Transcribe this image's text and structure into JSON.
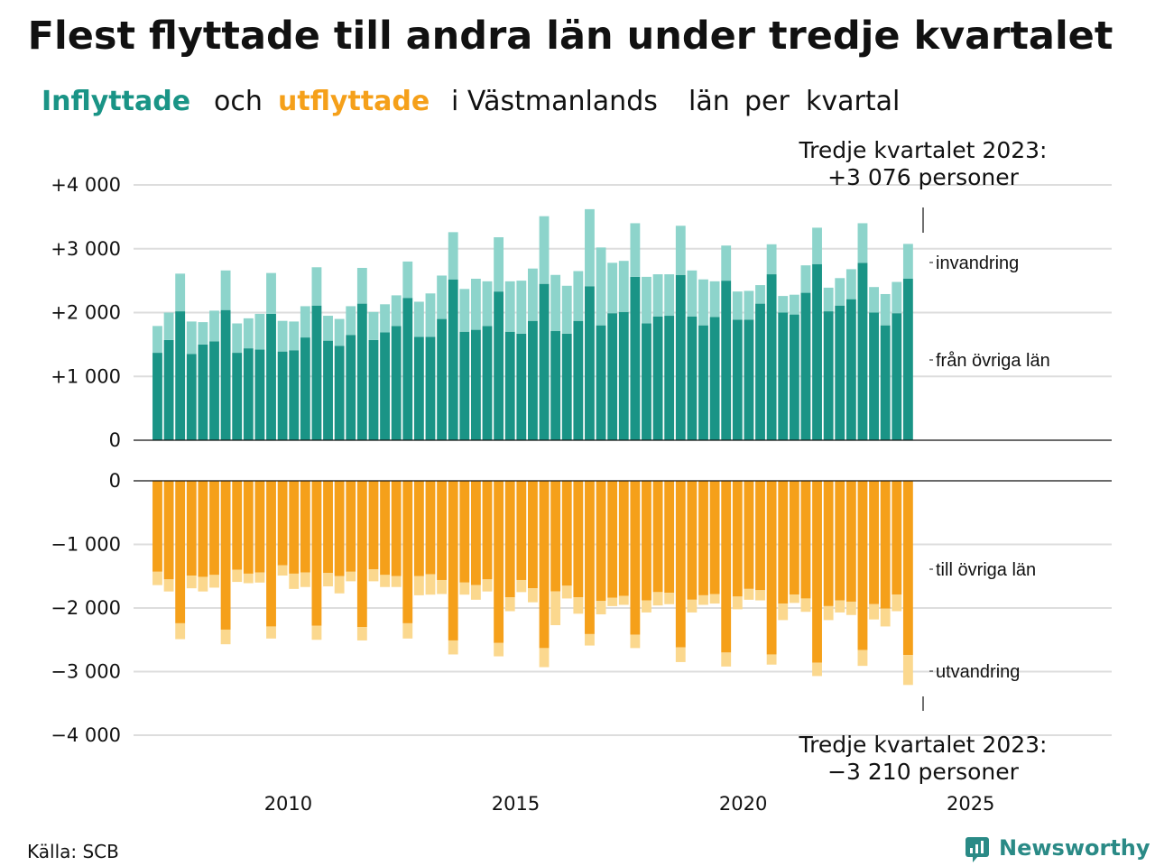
{
  "title": "Flest flyttade till andra län under tredje kvartalet",
  "subtitle": {
    "part1": "Inflyttade",
    "part2": "och",
    "part3": "utflyttade",
    "part4": "i Västmanlands",
    "part5": "län",
    "part6": "per",
    "part7": "kvartal"
  },
  "colors": {
    "in_main": "#1a9486",
    "in_light": "#8dd4cb",
    "out_main": "#f5a01a",
    "out_light": "#fbd88e",
    "grid": "#dddddd",
    "brand": "#2a8a86"
  },
  "annotations": {
    "top_line1": "Tredje kvartalet 2023:",
    "top_line2": "+3 076 personer",
    "bottom_line1": "Tredje kvartalet 2023:",
    "bottom_line2": "−3 210 personer"
  },
  "series_labels": {
    "in_light": "invandring",
    "in_main": "från övriga län",
    "out_main": "till övriga län",
    "out_light": "utvandring"
  },
  "source": "Källa: SCB",
  "brand": "Newsworthy",
  "chart_data": {
    "type": "bar",
    "stacked": true,
    "x_start": "2007 Q1",
    "x_end": "2023 Q3",
    "xlim": [
      2006.6,
      2028.1
    ],
    "x_ticks": [
      "2010",
      "2015",
      "2020",
      "2025"
    ],
    "top_panel": {
      "ylim": [
        0,
        4000
      ],
      "y_ticks": [
        "0",
        "+1 000",
        "+2 000",
        "+3 000",
        "+4 000"
      ],
      "series": [
        {
          "name": "från övriga län",
          "values": [
            1370,
            1570,
            2020,
            1350,
            1500,
            1550,
            2040,
            1370,
            1440,
            1420,
            1980,
            1390,
            1410,
            1610,
            2110,
            1560,
            1480,
            1650,
            2140,
            1570,
            1690,
            1790,
            2230,
            1620,
            1620,
            1900,
            2520,
            1700,
            1730,
            1790,
            2330,
            1700,
            1670,
            1870,
            2450,
            1710,
            1670,
            1870,
            2410,
            1800,
            1990,
            2010,
            2560,
            1830,
            1940,
            1950,
            2590,
            1940,
            1800,
            1930,
            2500,
            1890,
            1890,
            2140,
            2600,
            2000,
            1970,
            2310,
            2760,
            2020,
            2110,
            2210,
            2780,
            2000,
            1800,
            1990,
            2530
          ]
        },
        {
          "name": "invandring",
          "values": [
            420,
            430,
            590,
            510,
            350,
            480,
            620,
            460,
            470,
            560,
            640,
            480,
            450,
            490,
            600,
            390,
            420,
            450,
            560,
            440,
            440,
            480,
            570,
            550,
            680,
            680,
            740,
            670,
            800,
            700,
            850,
            790,
            830,
            820,
            1060,
            880,
            750,
            780,
            1210,
            1220,
            790,
            800,
            840,
            730,
            660,
            650,
            770,
            720,
            720,
            560,
            550,
            440,
            450,
            290,
            470,
            260,
            310,
            430,
            570,
            370,
            430,
            470,
            620,
            400,
            490,
            490,
            546
          ]
        }
      ]
    },
    "bottom_panel": {
      "ylim": [
        -4000,
        0
      ],
      "y_ticks": [
        "0",
        "−1 000",
        "−2 000",
        "−3 000",
        "−4 000"
      ],
      "series": [
        {
          "name": "till övriga län",
          "values": [
            -1430,
            -1550,
            -2240,
            -1490,
            -1510,
            -1480,
            -2340,
            -1400,
            -1460,
            -1440,
            -2290,
            -1330,
            -1460,
            -1440,
            -2280,
            -1450,
            -1500,
            -1430,
            -2300,
            -1390,
            -1480,
            -1500,
            -2240,
            -1500,
            -1470,
            -1560,
            -2510,
            -1600,
            -1640,
            -1550,
            -2550,
            -1830,
            -1560,
            -1690,
            -2630,
            -1740,
            -1650,
            -1830,
            -2410,
            -1890,
            -1840,
            -1810,
            -2420,
            -1880,
            -1750,
            -1760,
            -2620,
            -1870,
            -1800,
            -1780,
            -2700,
            -1820,
            -1700,
            -1720,
            -2730,
            -1930,
            -1790,
            -1850,
            -2860,
            -1970,
            -1880,
            -1900,
            -2660,
            -1940,
            -2010,
            -1790,
            -2740
          ]
        },
        {
          "name": "utvandring",
          "values": [
            -210,
            -190,
            -250,
            -200,
            -230,
            -200,
            -230,
            -190,
            -150,
            -160,
            -190,
            -160,
            -240,
            -230,
            -220,
            -210,
            -270,
            -150,
            -210,
            -190,
            -190,
            -170,
            -240,
            -300,
            -320,
            -220,
            -220,
            -190,
            -230,
            -190,
            -210,
            -220,
            -190,
            -220,
            -300,
            -530,
            -200,
            -260,
            -180,
            -210,
            -130,
            -140,
            -210,
            -190,
            -210,
            -180,
            -230,
            -200,
            -150,
            -150,
            -220,
            -200,
            -170,
            -160,
            -160,
            -260,
            -130,
            -210,
            -210,
            -220,
            -190,
            -210,
            -250,
            -240,
            -280,
            -260,
            -470
          ]
        }
      ]
    }
  }
}
